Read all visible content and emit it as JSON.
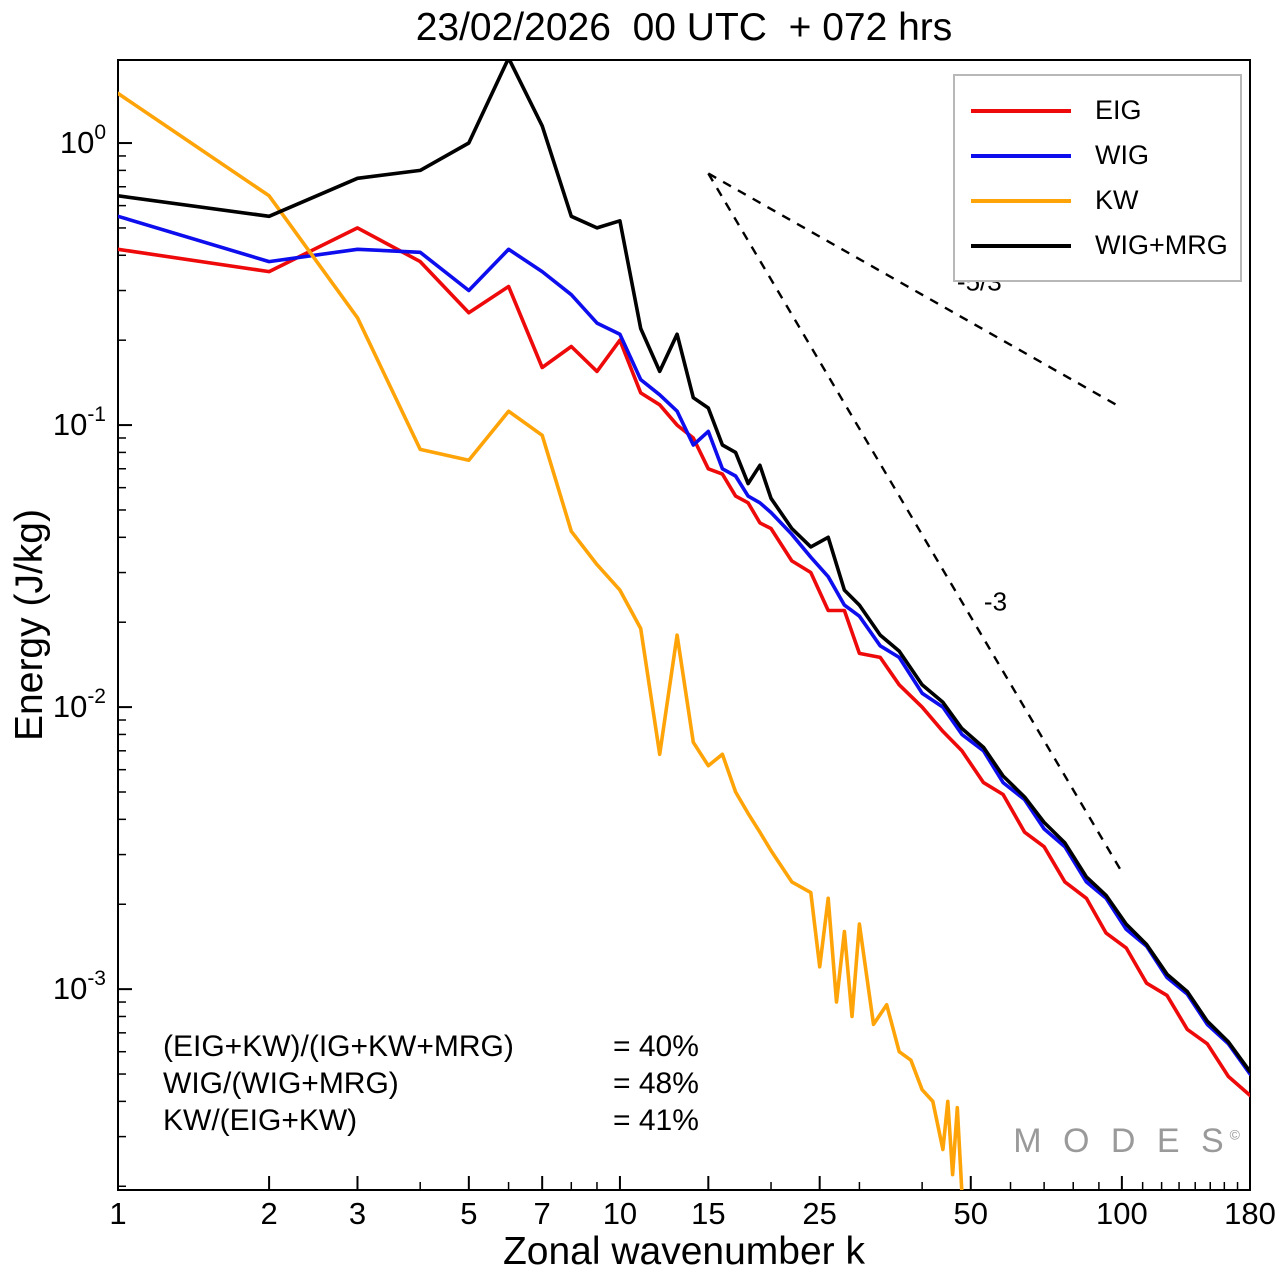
{
  "chart_data": {
    "type": "line",
    "title": "23/02/2026  00 UTC  + 072 hrs",
    "xlabel": "Zonal wavenumber k",
    "ylabel": "Energy (J/kg)",
    "x_scale": "log",
    "y_scale": "log",
    "xlim": [
      1,
      180
    ],
    "ylim": [
      0.000194,
      1.97
    ],
    "grid": false,
    "legend_position": "top-right",
    "x_major_ticks": [
      1,
      2,
      3,
      5,
      7,
      10,
      15,
      25,
      50,
      100,
      180
    ],
    "x_minor_ticks": [
      4,
      6,
      8,
      9,
      20,
      30,
      40,
      60,
      70,
      80,
      90,
      110,
      120,
      130,
      140,
      150,
      160,
      170
    ],
    "y_major_tick_exponents": [
      0,
      -1,
      -2,
      -3
    ],
    "series": [
      {
        "name": "EIG",
        "color": "#ee0a0a",
        "points": [
          [
            1,
            0.42
          ],
          [
            2,
            0.35
          ],
          [
            3,
            0.5
          ],
          [
            4,
            0.38
          ],
          [
            5,
            0.25
          ],
          [
            6,
            0.31
          ],
          [
            7,
            0.16
          ],
          [
            8,
            0.19
          ],
          [
            9,
            0.155
          ],
          [
            10,
            0.2
          ],
          [
            11,
            0.13
          ],
          [
            12,
            0.118
          ],
          [
            13,
            0.1
          ],
          [
            14,
            0.09
          ],
          [
            15,
            0.07
          ],
          [
            16,
            0.067
          ],
          [
            17,
            0.056
          ],
          [
            18,
            0.053
          ],
          [
            19,
            0.045
          ],
          [
            20,
            0.043
          ],
          [
            22,
            0.033
          ],
          [
            24,
            0.03
          ],
          [
            26,
            0.022
          ],
          [
            28,
            0.022
          ],
          [
            30,
            0.0155
          ],
          [
            33,
            0.015
          ],
          [
            36,
            0.012
          ],
          [
            40,
            0.01
          ],
          [
            44,
            0.0082
          ],
          [
            48,
            0.007
          ],
          [
            53,
            0.0054
          ],
          [
            58,
            0.0049
          ],
          [
            64,
            0.0036
          ],
          [
            70,
            0.0032
          ],
          [
            77,
            0.0024
          ],
          [
            85,
            0.0021
          ],
          [
            93,
            0.00158
          ],
          [
            102,
            0.0014
          ],
          [
            112,
            0.00105
          ],
          [
            123,
            0.00095
          ],
          [
            135,
            0.00072
          ],
          [
            148,
            0.00064
          ],
          [
            163,
            0.00049
          ],
          [
            180,
            0.00042
          ]
        ]
      },
      {
        "name": "WIG",
        "color": "#0d0dee",
        "points": [
          [
            1,
            0.55
          ],
          [
            2,
            0.38
          ],
          [
            3,
            0.42
          ],
          [
            4,
            0.41
          ],
          [
            5,
            0.3
          ],
          [
            6,
            0.42
          ],
          [
            7,
            0.35
          ],
          [
            8,
            0.29
          ],
          [
            9,
            0.23
          ],
          [
            10,
            0.21
          ],
          [
            11,
            0.145
          ],
          [
            12,
            0.128
          ],
          [
            13,
            0.112
          ],
          [
            14,
            0.085
          ],
          [
            15,
            0.095
          ],
          [
            16,
            0.07
          ],
          [
            17,
            0.066
          ],
          [
            18,
            0.056
          ],
          [
            19,
            0.053
          ],
          [
            20,
            0.049
          ],
          [
            22,
            0.041
          ],
          [
            24,
            0.034
          ],
          [
            26,
            0.029
          ],
          [
            28,
            0.023
          ],
          [
            30,
            0.021
          ],
          [
            33,
            0.0165
          ],
          [
            36,
            0.015
          ],
          [
            40,
            0.0112
          ],
          [
            44,
            0.01
          ],
          [
            48,
            0.008
          ],
          [
            53,
            0.007
          ],
          [
            58,
            0.0054
          ],
          [
            64,
            0.0047
          ],
          [
            70,
            0.0037
          ],
          [
            77,
            0.0032
          ],
          [
            85,
            0.0024
          ],
          [
            93,
            0.0021
          ],
          [
            102,
            0.00163
          ],
          [
            112,
            0.00142
          ],
          [
            123,
            0.0011
          ],
          [
            135,
            0.00096
          ],
          [
            148,
            0.00075
          ],
          [
            163,
            0.00064
          ],
          [
            180,
            0.0005
          ]
        ]
      },
      {
        "name": "KW",
        "color": "#ffa408",
        "points": [
          [
            1,
            1.5
          ],
          [
            2,
            0.65
          ],
          [
            3,
            0.24
          ],
          [
            4,
            0.082
          ],
          [
            5,
            0.075
          ],
          [
            6,
            0.112
          ],
          [
            7,
            0.092
          ],
          [
            8,
            0.042
          ],
          [
            9,
            0.032
          ],
          [
            10,
            0.026
          ],
          [
            11,
            0.019
          ],
          [
            12,
            0.0068
          ],
          [
            13,
            0.018
          ],
          [
            14,
            0.0075
          ],
          [
            15,
            0.0062
          ],
          [
            16,
            0.0068
          ],
          [
            17,
            0.005
          ],
          [
            18,
            0.0042
          ],
          [
            19,
            0.0036
          ],
          [
            20,
            0.0031
          ],
          [
            22,
            0.0024
          ],
          [
            24,
            0.0022
          ],
          [
            25,
            0.0012
          ],
          [
            26,
            0.0021
          ],
          [
            27,
            0.0009
          ],
          [
            28,
            0.0016
          ],
          [
            29,
            0.0008
          ],
          [
            30,
            0.0017
          ],
          [
            32,
            0.00075
          ],
          [
            34,
            0.00088
          ],
          [
            36,
            0.0006
          ],
          [
            38,
            0.00056
          ],
          [
            40,
            0.00044
          ],
          [
            42,
            0.0004
          ],
          [
            44,
            0.00027
          ],
          [
            45,
            0.0004
          ],
          [
            46,
            0.00022
          ],
          [
            47,
            0.00038
          ],
          [
            48,
            0.00019
          ],
          [
            50,
            0.00015
          ]
        ]
      },
      {
        "name": "WIG+MRG",
        "color": "#000000",
        "points": [
          [
            1,
            0.65
          ],
          [
            2,
            0.55
          ],
          [
            3,
            0.75
          ],
          [
            4,
            0.8
          ],
          [
            5,
            1.0
          ],
          [
            6,
            2.0
          ],
          [
            7,
            1.15
          ],
          [
            8,
            0.55
          ],
          [
            9,
            0.5
          ],
          [
            10,
            0.53
          ],
          [
            11,
            0.22
          ],
          [
            12,
            0.155
          ],
          [
            13,
            0.21
          ],
          [
            14,
            0.125
          ],
          [
            15,
            0.115
          ],
          [
            16,
            0.085
          ],
          [
            17,
            0.08
          ],
          [
            18,
            0.062
          ],
          [
            19,
            0.072
          ],
          [
            20,
            0.055
          ],
          [
            22,
            0.043
          ],
          [
            24,
            0.037
          ],
          [
            26,
            0.04
          ],
          [
            28,
            0.026
          ],
          [
            30,
            0.023
          ],
          [
            33,
            0.018
          ],
          [
            36,
            0.0158
          ],
          [
            40,
            0.012
          ],
          [
            44,
            0.0104
          ],
          [
            48,
            0.0084
          ],
          [
            53,
            0.0072
          ],
          [
            58,
            0.0057
          ],
          [
            64,
            0.0048
          ],
          [
            70,
            0.0039
          ],
          [
            77,
            0.0033
          ],
          [
            85,
            0.0025
          ],
          [
            93,
            0.00215
          ],
          [
            102,
            0.0017
          ],
          [
            112,
            0.00144
          ],
          [
            123,
            0.00113
          ],
          [
            135,
            0.00098
          ],
          [
            148,
            0.00077
          ],
          [
            163,
            0.00065
          ],
          [
            180,
            0.00051
          ]
        ]
      }
    ],
    "reference_lines": [
      {
        "label": "-5/3",
        "from": [
          15,
          0.78
        ],
        "to": [
          100,
          0.115
        ],
        "label_at": [
          52,
          0.3
        ]
      },
      {
        "label": "-3",
        "from": [
          15,
          0.78
        ],
        "to": [
          100,
          0.0026
        ],
        "label_at": [
          56,
          0.022
        ]
      }
    ]
  },
  "stats": {
    "rows": [
      {
        "expr": "(EIG+KW)/(IG+KW+MRG)",
        "value": "= 40%"
      },
      {
        "expr": "WIG/(WIG+MRG)",
        "value": "= 48%"
      },
      {
        "expr": "KW/(EIG+KW)",
        "value": "= 41%"
      }
    ]
  },
  "watermark": {
    "text": "M O D E S",
    "mark": "©"
  }
}
